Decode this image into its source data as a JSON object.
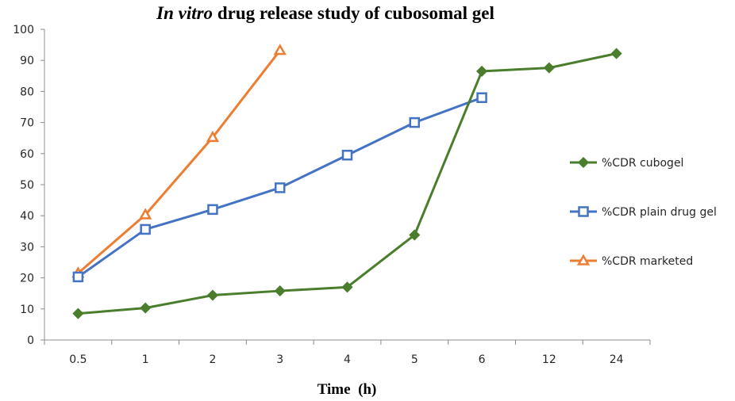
{
  "chart_data": {
    "type": "line",
    "title_italic": "In vitro",
    "title_rest": " drug release study of cubosomal gel",
    "xlabel": "Time  (h)",
    "ylabel": "",
    "categories": [
      "0.5",
      "1",
      "2",
      "3",
      "4",
      "5",
      "6",
      "12",
      "24"
    ],
    "ylim": [
      0,
      100
    ],
    "yticks": [
      0,
      10,
      20,
      30,
      40,
      50,
      60,
      70,
      80,
      90,
      100
    ],
    "grid": false,
    "legend_position": "right",
    "series": [
      {
        "name": "%CDR cubogel",
        "color": "#4a7d2c",
        "marker": "diamond",
        "values": [
          8.5,
          10.3,
          14.4,
          15.8,
          17.0,
          33.8,
          86.5,
          87.6,
          92.2
        ]
      },
      {
        "name": "%CDR plain drug gel",
        "color": "#4472c4",
        "marker": "square",
        "values": [
          20.3,
          35.6,
          42.0,
          49.0,
          59.5,
          70.0,
          78.0,
          null,
          null
        ]
      },
      {
        "name": "%CDR marketed",
        "color": "#ed7d31",
        "marker": "triangle",
        "values": [
          21.5,
          40.3,
          65.2,
          93.2,
          null,
          null,
          null,
          null,
          null
        ]
      }
    ]
  }
}
